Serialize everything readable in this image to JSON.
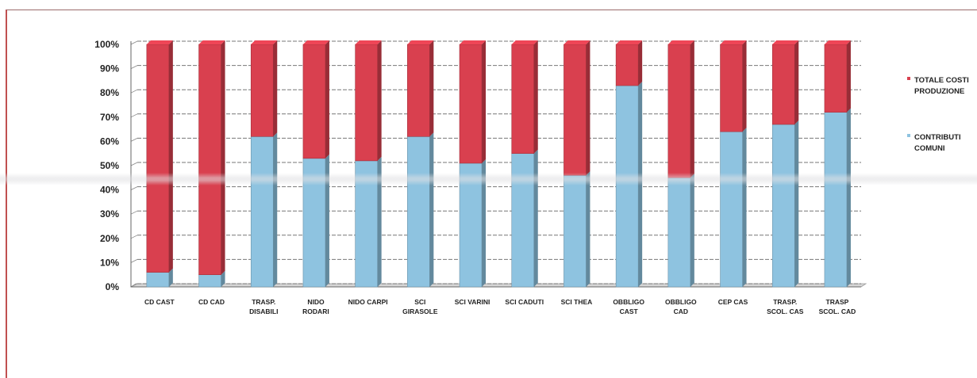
{
  "chart_data": {
    "type": "bar",
    "stacked": true,
    "normalized": true,
    "categories": [
      [
        "CD CAST"
      ],
      [
        "CD CAD"
      ],
      [
        "TRASP.",
        "DISABILI"
      ],
      [
        "NIDO",
        "RODARI"
      ],
      [
        "NIDO CARPI"
      ],
      [
        "SCI",
        "GIRASOLE"
      ],
      [
        "SCI VARINI"
      ],
      [
        "SCI CADUTI"
      ],
      [
        "SCI THEA"
      ],
      [
        "OBBLIGO",
        "CAST"
      ],
      [
        "OBBLIGO",
        "CAD"
      ],
      [
        "CEP CAS"
      ],
      [
        "TRASP.",
        "SCOL. CAS"
      ],
      [
        "TRASP",
        "SCOL. CAD"
      ]
    ],
    "series": [
      {
        "name": [
          "CONTRIBUTI",
          "COMUNI"
        ],
        "color": "#8ec3e0",
        "values": [
          6,
          5,
          62,
          53,
          52,
          62,
          51,
          55,
          46,
          83,
          45,
          64,
          67,
          72
        ]
      },
      {
        "name": [
          "TOTALE COSTI",
          "PRODUZIONE"
        ],
        "color": "#d9404f",
        "values": [
          94,
          95,
          38,
          47,
          48,
          38,
          49,
          45,
          54,
          17,
          55,
          36,
          33,
          28
        ]
      }
    ],
    "y_ticks": [
      "0%",
      "10%",
      "20%",
      "30%",
      "40%",
      "50%",
      "60%",
      "70%",
      "80%",
      "90%",
      "100%"
    ],
    "ylim": [
      0,
      100
    ],
    "grid": true,
    "legend_position": "right"
  }
}
